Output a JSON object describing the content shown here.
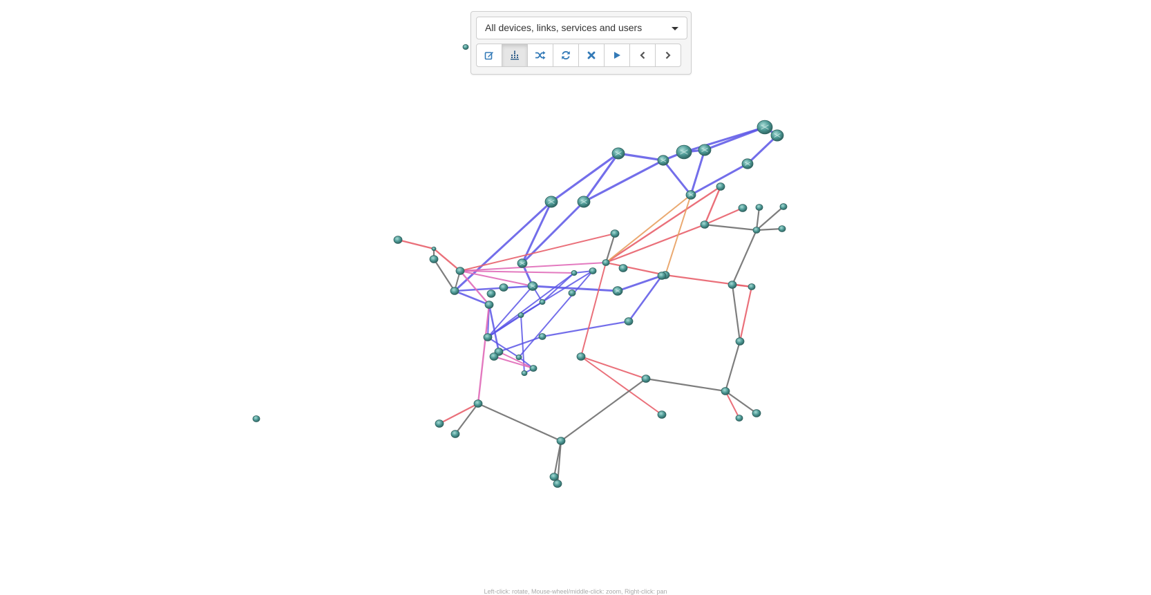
{
  "view_select": {
    "selected": "All devices, links, services and users"
  },
  "toolbar": {
    "buttons": [
      {
        "icon": "edit-icon",
        "active": false
      },
      {
        "icon": "dot-chart-icon",
        "active": true
      },
      {
        "icon": "shuffle-icon",
        "active": false
      },
      {
        "icon": "refresh-icon",
        "active": false
      },
      {
        "icon": "close-icon",
        "active": false
      },
      {
        "icon": "play-icon",
        "active": false
      },
      {
        "icon": "chevron-left-icon",
        "active": false
      },
      {
        "icon": "chevron-right-icon",
        "active": false
      }
    ]
  },
  "hint": "Left-click: rotate, Mouse-wheel/middle-click: zoom, Right-click: pan",
  "colors": {
    "accent": "#337ab7",
    "link_blue": "#5b55e6",
    "link_red": "#e8606c",
    "link_gray": "#6f6f6f",
    "link_orange": "#e8a060",
    "link_pink": "#e06ab8",
    "node": "#4e9a96"
  }
}
